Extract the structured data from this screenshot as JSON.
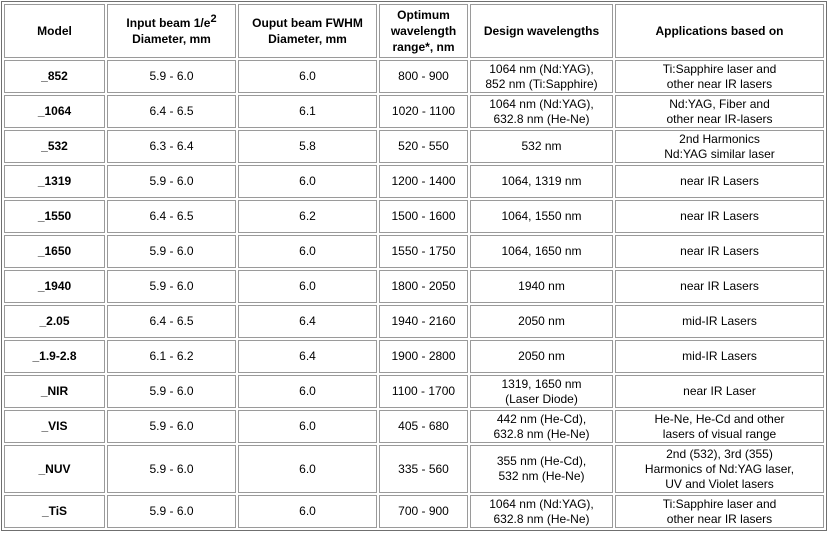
{
  "headers": {
    "model": "Model",
    "input_beam_a": "Input beam 1/e",
    "input_beam_sup": "2",
    "input_beam_b": "Diameter, mm",
    "output_beam": "Ouput beam FWHM\nDiameter, mm",
    "optimum_range": "Optimum\nwavelength\nrange*, nm",
    "design_wavelengths": "Design wavelengths",
    "applications": "Applications based on"
  },
  "rows": [
    {
      "model": "_852",
      "input": "5.9 - 6.0",
      "output": "6.0",
      "range": "800 - 900",
      "design": "1064 nm (Nd:YAG),\n852 nm (Ti:Sapphire)",
      "apps": "Ti:Sapphire laser and\nother near IR lasers"
    },
    {
      "model": "_1064",
      "input": "6.4 - 6.5",
      "output": "6.1",
      "range": "1020 - 1100",
      "design": "1064 nm (Nd:YAG),\n632.8 nm (He-Ne)",
      "apps": "Nd:YAG, Fiber and\nother near IR-lasers"
    },
    {
      "model": "_532",
      "input": "6.3 - 6.4",
      "output": "5.8",
      "range": "520 - 550",
      "design": "532 nm",
      "apps": "2nd Harmonics\nNd:YAG similar laser"
    },
    {
      "model": "_1319",
      "input": "5.9 - 6.0",
      "output": "6.0",
      "range": "1200 - 1400",
      "design": "1064, 1319 nm",
      "apps": "near IR Lasers"
    },
    {
      "model": "_1550",
      "input": "6.4 - 6.5",
      "output": "6.2",
      "range": "1500 - 1600",
      "design": "1064, 1550 nm",
      "apps": "near IR Lasers"
    },
    {
      "model": "_1650",
      "input": "5.9 - 6.0",
      "output": "6.0",
      "range": "1550 - 1750",
      "design": "1064, 1650 nm",
      "apps": "near IR Lasers"
    },
    {
      "model": "_1940",
      "input": "5.9 - 6.0",
      "output": "6.0",
      "range": "1800 - 2050",
      "design": "1940 nm",
      "apps": "near IR Lasers"
    },
    {
      "model": "_2.05",
      "input": "6.4 - 6.5",
      "output": "6.4",
      "range": "1940 - 2160",
      "design": "2050 nm",
      "apps": "mid-IR Lasers"
    },
    {
      "model": "_1.9-2.8",
      "input": "6.1 - 6.2",
      "output": "6.4",
      "range": "1900 - 2800",
      "design": "2050 nm",
      "apps": "mid-IR Lasers"
    },
    {
      "model": "_NIR",
      "input": "5.9 - 6.0",
      "output": "6.0",
      "range": "1100 - 1700",
      "design": "1319, 1650 nm\n(Laser Diode)",
      "apps": "near IR Laser"
    },
    {
      "model": "_VIS",
      "input": "5.9 - 6.0",
      "output": "6.0",
      "range": "405 - 680",
      "design": "442 nm (He-Cd),\n632.8 nm (He-Ne)",
      "apps": "He-Ne, He-Cd and other\nlasers of visual range"
    },
    {
      "model": "_NUV",
      "input": "5.9 - 6.0",
      "output": "6.0",
      "range": "335 - 560",
      "design": "355 nm (He-Cd),\n532 nm (He-Ne)",
      "apps": "2nd (532), 3rd (355)\nHarmonics of Nd:YAG laser,\nUV and Violet lasers",
      "tall": true
    },
    {
      "model": "_TiS",
      "input": "5.9 - 6.0",
      "output": "6.0",
      "range": "700 - 900",
      "design": "1064 nm (Nd:YAG),\n632.8 nm (He-Ne)",
      "apps": "Ti:Sapphire laser and\nother near IR lasers"
    }
  ]
}
